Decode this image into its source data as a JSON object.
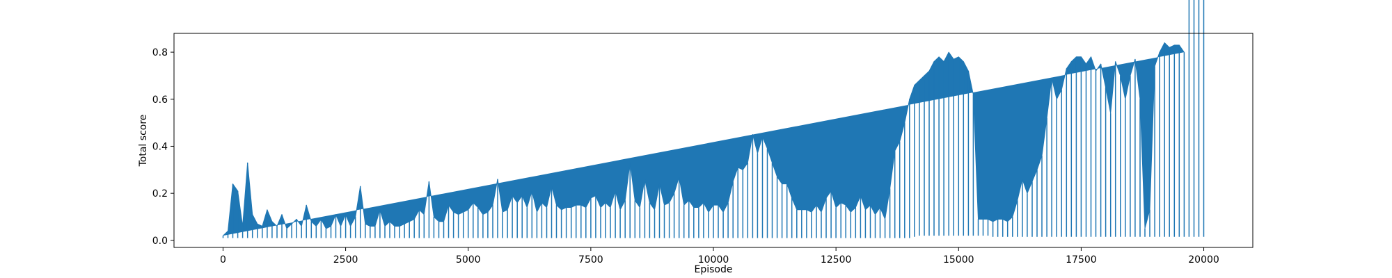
{
  "chart_data": {
    "type": "line",
    "title": "",
    "xlabel": "Episode",
    "ylabel": "Total score",
    "xlim": [
      -1000,
      21000
    ],
    "ylim": [
      -0.03,
      0.88
    ],
    "x_ticks": [
      0,
      2500,
      5000,
      7500,
      10000,
      12500,
      15000,
      17500,
      20000
    ],
    "y_ticks": [
      0.0,
      0.2,
      0.4,
      0.6,
      0.8
    ],
    "x_tick_labels": [
      "0",
      "2500",
      "5000",
      "7500",
      "10000",
      "12500",
      "15000",
      "17500",
      "20000"
    ],
    "y_tick_labels": [
      "0.0",
      "0.2",
      "0.4",
      "0.6",
      "0.8"
    ],
    "grid": false,
    "legend": "none",
    "series": [
      {
        "color": "#1f77b4",
        "sampling": "approximate per-100-episode [min, max] envelope read from the plot",
        "x": [
          0,
          100,
          200,
          300,
          400,
          500,
          600,
          700,
          800,
          900,
          1000,
          1100,
          1200,
          1300,
          1400,
          1500,
          1600,
          1700,
          1800,
          1900,
          2000,
          2100,
          2200,
          2300,
          2400,
          2500,
          2600,
          2700,
          2800,
          2900,
          3000,
          3100,
          3200,
          3300,
          3400,
          3500,
          3600,
          3700,
          3800,
          3900,
          4000,
          4100,
          4200,
          4300,
          4400,
          4500,
          4600,
          4700,
          4800,
          4900,
          5000,
          5100,
          5200,
          5300,
          5400,
          5500,
          5600,
          5700,
          5800,
          5900,
          6000,
          6100,
          6200,
          6300,
          6400,
          6500,
          6600,
          6700,
          6800,
          6900,
          7000,
          7100,
          7200,
          7300,
          7400,
          7500,
          7600,
          7700,
          7800,
          7900,
          8000,
          8100,
          8200,
          8300,
          8400,
          8500,
          8600,
          8700,
          8800,
          8900,
          9000,
          9100,
          9200,
          9300,
          9400,
          9500,
          9600,
          9700,
          9800,
          9900,
          10000,
          10100,
          10200,
          10300,
          10400,
          10500,
          10600,
          10700,
          10800,
          10900,
          11000,
          11100,
          11200,
          11300,
          11400,
          11500,
          11600,
          11700,
          11800,
          11900,
          12000,
          12100,
          12200,
          12300,
          12400,
          12500,
          12600,
          12700,
          12800,
          12900,
          13000,
          13100,
          13200,
          13300,
          13400,
          13500,
          13600,
          13700,
          13800,
          13900,
          14000,
          14100,
          14200,
          14300,
          14400,
          14500,
          14600,
          14700,
          14800,
          14900,
          15000,
          15100,
          15200,
          15300,
          15400,
          15500,
          15600,
          15700,
          15800,
          15900,
          16000,
          16100,
          16200,
          16300,
          16400,
          16500,
          16600,
          16700,
          16800,
          16900,
          17000,
          17100,
          17200,
          17300,
          17400,
          17500,
          17600,
          17700,
          17800,
          17900,
          18000,
          18100,
          18200,
          18300,
          18400,
          18500,
          18600,
          18700,
          18800,
          18900,
          19000,
          19100,
          19200,
          19300,
          19400,
          19500,
          19600,
          19700,
          19800,
          19900,
          20000
        ],
        "y_min": [
          0.01,
          0.01,
          0.01,
          0.01,
          0.01,
          0.01,
          0.01,
          0.01,
          0.01,
          0.01,
          0.01,
          0.01,
          0.01,
          0.01,
          0.01,
          0.01,
          0.01,
          0.01,
          0.01,
          0.01,
          0.01,
          0.01,
          0.01,
          0.01,
          0.01,
          0.01,
          0.01,
          0.01,
          0.01,
          0.01,
          0.01,
          0.01,
          0.01,
          0.01,
          0.01,
          0.01,
          0.01,
          0.01,
          0.01,
          0.01,
          0.01,
          0.01,
          0.01,
          0.01,
          0.01,
          0.01,
          0.01,
          0.01,
          0.01,
          0.01,
          0.01,
          0.01,
          0.01,
          0.01,
          0.01,
          0.01,
          0.01,
          0.01,
          0.01,
          0.01,
          0.01,
          0.01,
          0.01,
          0.01,
          0.01,
          0.01,
          0.01,
          0.01,
          0.01,
          0.01,
          0.01,
          0.01,
          0.01,
          0.01,
          0.01,
          0.01,
          0.01,
          0.01,
          0.01,
          0.01,
          0.01,
          0.01,
          0.01,
          0.01,
          0.01,
          0.01,
          0.01,
          0.01,
          0.01,
          0.01,
          0.01,
          0.01,
          0.01,
          0.01,
          0.01,
          0.01,
          0.01,
          0.01,
          0.01,
          0.01,
          0.01,
          0.01,
          0.01,
          0.01,
          0.01,
          0.01,
          0.01,
          0.01,
          0.01,
          0.01,
          0.01,
          0.01,
          0.01,
          0.01,
          0.01,
          0.01,
          0.01,
          0.01,
          0.01,
          0.01,
          0.01,
          0.01,
          0.01,
          0.01,
          0.01,
          0.01,
          0.01,
          0.01,
          0.01,
          0.01,
          0.01,
          0.01,
          0.01,
          0.01,
          0.01,
          0.01,
          0.01,
          0.01,
          0.01,
          0.01,
          0.01,
          0.015,
          0.02,
          0.02,
          0.02,
          0.02,
          0.02,
          0.02,
          0.02,
          0.02,
          0.02,
          0.02,
          0.02,
          0.02,
          0.02,
          0.02,
          0.02,
          0.015,
          0.015,
          0.015,
          0.015,
          0.015,
          0.015,
          0.015,
          0.015,
          0.015,
          0.015,
          0.015,
          0.015,
          0.015,
          0.015,
          0.015,
          0.015,
          0.015,
          0.015,
          0.015,
          0.015,
          0.015,
          0.015,
          0.015,
          0.015,
          0.015,
          0.015,
          0.015,
          0.015,
          0.015,
          0.015,
          0.015,
          0.015,
          0.015,
          0.015,
          0.015,
          0.015,
          0.015,
          0.015,
          0.015,
          0.015,
          0.015,
          0.015,
          0.015,
          0.015,
          0.015,
          0.015
        ],
        "y_max": [
          0.02,
          0.04,
          0.24,
          0.21,
          0.06,
          0.33,
          0.11,
          0.07,
          0.06,
          0.13,
          0.08,
          0.06,
          0.11,
          0.05,
          0.07,
          0.09,
          0.06,
          0.15,
          0.08,
          0.06,
          0.09,
          0.05,
          0.06,
          0.11,
          0.06,
          0.11,
          0.06,
          0.1,
          0.23,
          0.07,
          0.06,
          0.06,
          0.13,
          0.06,
          0.08,
          0.06,
          0.06,
          0.07,
          0.08,
          0.09,
          0.13,
          0.11,
          0.25,
          0.1,
          0.08,
          0.08,
          0.15,
          0.12,
          0.11,
          0.12,
          0.13,
          0.16,
          0.14,
          0.11,
          0.12,
          0.15,
          0.26,
          0.12,
          0.13,
          0.19,
          0.16,
          0.19,
          0.14,
          0.21,
          0.12,
          0.16,
          0.14,
          0.23,
          0.15,
          0.13,
          0.14,
          0.14,
          0.15,
          0.15,
          0.14,
          0.18,
          0.19,
          0.14,
          0.16,
          0.14,
          0.21,
          0.13,
          0.17,
          0.33,
          0.17,
          0.14,
          0.26,
          0.16,
          0.13,
          0.24,
          0.15,
          0.16,
          0.2,
          0.27,
          0.15,
          0.17,
          0.14,
          0.14,
          0.16,
          0.12,
          0.15,
          0.15,
          0.12,
          0.16,
          0.25,
          0.31,
          0.3,
          0.33,
          0.45,
          0.37,
          0.44,
          0.39,
          0.33,
          0.27,
          0.24,
          0.24,
          0.18,
          0.13,
          0.13,
          0.13,
          0.12,
          0.15,
          0.12,
          0.18,
          0.21,
          0.14,
          0.16,
          0.15,
          0.12,
          0.14,
          0.19,
          0.13,
          0.15,
          0.11,
          0.14,
          0.09,
          0.22,
          0.38,
          0.42,
          0.5,
          0.6,
          0.66,
          0.68,
          0.7,
          0.72,
          0.76,
          0.78,
          0.76,
          0.8,
          0.77,
          0.78,
          0.76,
          0.72,
          0.62,
          0.09,
          0.09,
          0.09,
          0.08,
          0.09,
          0.09,
          0.08,
          0.1,
          0.17,
          0.26,
          0.2,
          0.25,
          0.3,
          0.36,
          0.52,
          0.69,
          0.6,
          0.64,
          0.73,
          0.76,
          0.78,
          0.78,
          0.75,
          0.78,
          0.72,
          0.75,
          0.65,
          0.54,
          0.76,
          0.7,
          0.6,
          0.7,
          0.77,
          0.6,
          0.05,
          0.13,
          0.74,
          0.8,
          0.84,
          0.82,
          0.83,
          0.83,
          0.8
        ]
      }
    ]
  }
}
